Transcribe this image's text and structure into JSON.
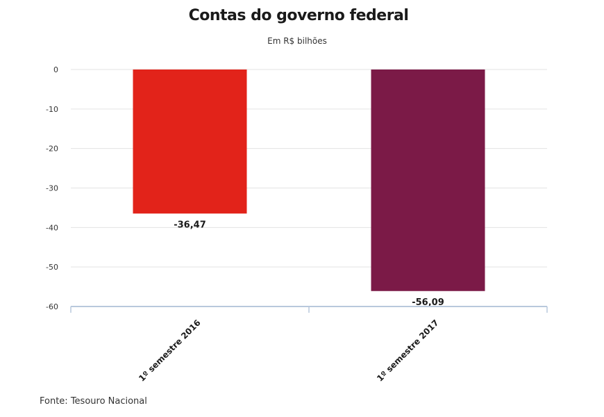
{
  "header": {
    "title": "Contas do governo federal",
    "subtitle": "Em R$ bilhões"
  },
  "footer": {
    "source": "Fonte: Tesouro Nacional"
  },
  "chart_data": {
    "type": "bar",
    "title": "Contas do governo federal",
    "subtitle": "Em R$ bilhões",
    "categories": [
      "1º semestre 2016",
      "1º semestre 2017"
    ],
    "values": [
      -36.47,
      -56.09
    ],
    "data_labels": [
      "-36,47",
      "-56,09"
    ],
    "colors": [
      "#e2231a",
      "#7b1a47"
    ],
    "y_ticks": [
      0,
      -10,
      -20,
      -30,
      -40,
      -50,
      -60
    ],
    "ylim": [
      -60,
      0
    ],
    "xlabel": "",
    "ylabel": "",
    "grid": true,
    "legend": "none"
  }
}
